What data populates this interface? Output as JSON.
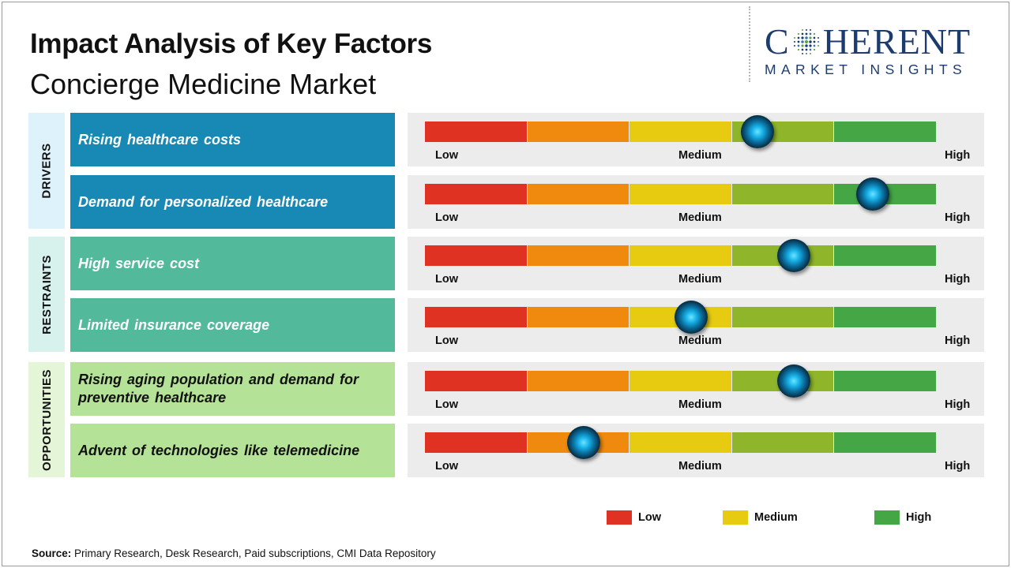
{
  "header": {
    "title": "Impact Analysis of Key Factors",
    "subtitle": "Concierge Medicine Market"
  },
  "logo": {
    "letters_before": "C",
    "letters_after": "HERENT",
    "tagline": "MARKET INSIGHTS",
    "color": "#1d3c6e"
  },
  "colors": {
    "drivers_side": "#ddf2fa",
    "drivers_box": "#1889b4",
    "restraints_side": "#d7f1ec",
    "restraints_box": "#52b99a",
    "opportunities_side": "#e4f5d8",
    "opportunities_box": "#b4e296",
    "segment_colors": [
      "#e03222",
      "#ef8a0e",
      "#e6cb11",
      "#8fb52a",
      "#45a646"
    ]
  },
  "chart_data": {
    "type": "gauge",
    "title": "Impact Analysis of Key Factors",
    "subtitle": "Concierge Medicine Market",
    "scale_labels": [
      "Low",
      "Medium",
      "High"
    ],
    "scale_range": [
      0,
      1
    ],
    "categories": [
      {
        "name": "DRIVERS",
        "factors": [
          {
            "label": "Rising healthcare  costs",
            "impact": 0.65
          },
          {
            "label": "Demand for personalized  healthcare",
            "impact": 0.875
          }
        ]
      },
      {
        "name": "RESTRAINTS",
        "factors": [
          {
            "label": "High service cost",
            "impact": 0.72
          },
          {
            "label": "Limited insurance  coverage",
            "impact": 0.52
          }
        ]
      },
      {
        "name": "OPPORTUNITIES",
        "factors": [
          {
            "label": "Rising aging population and demand for preventive  healthcare",
            "impact": 0.72
          },
          {
            "label": "Advent of technologies like telemedicine",
            "impact": 0.31
          }
        ]
      }
    ],
    "legend": [
      {
        "label": "Low",
        "color": "#e03222"
      },
      {
        "label": "Medium",
        "color": "#e6cb11"
      },
      {
        "label": "High",
        "color": "#45a646"
      }
    ],
    "legend_position": "bottom-right"
  },
  "source": {
    "label": "Source:",
    "text": " Primary Research, Desk Research, Paid subscriptions, CMI Data Repository"
  }
}
